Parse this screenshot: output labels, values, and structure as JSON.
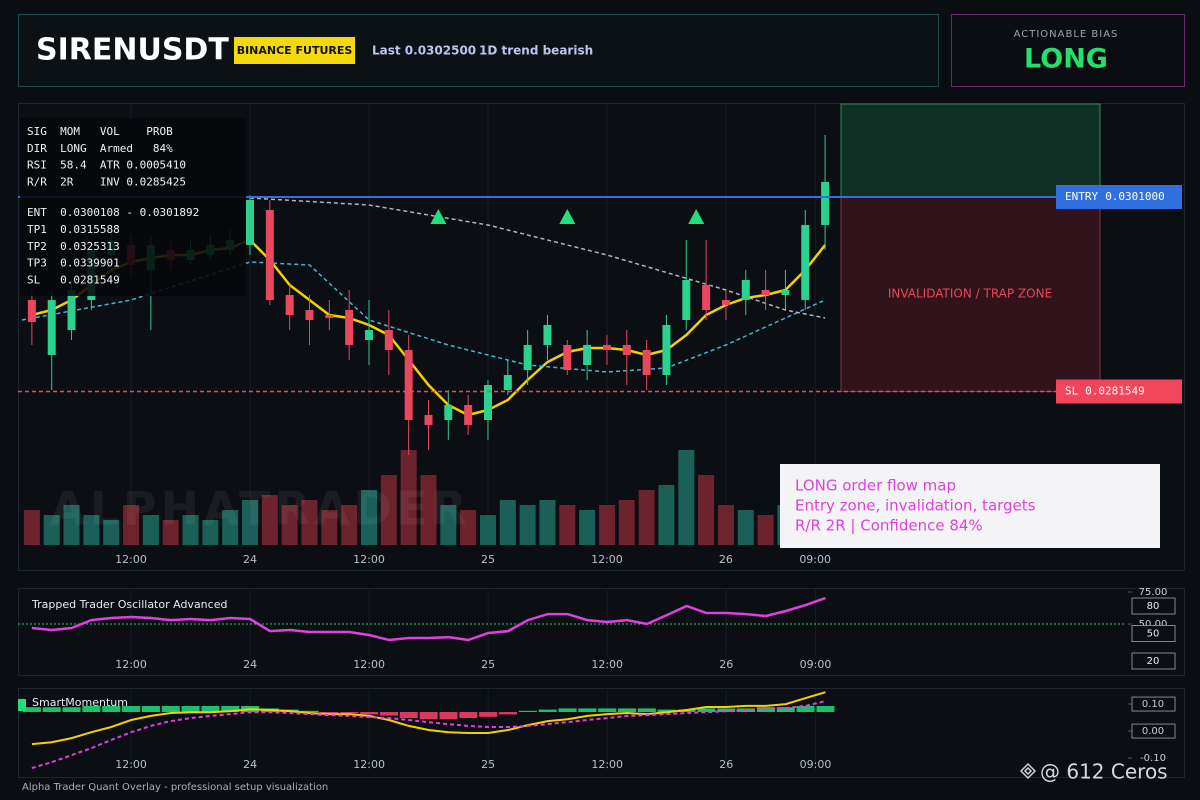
{
  "header": {
    "symbol": "SIRENUSDT",
    "badge": "BINANCE FUTURES",
    "last": "Last 0.0302500",
    "trend": "1D trend bearish"
  },
  "bias": {
    "label": "ACTIONABLE BIAS",
    "value": "LONG"
  },
  "annotation": [
    "LONG order flow map",
    "Entry zone, invalidation, targets",
    "R/R 2R | Confidence 84%"
  ],
  "footer": "Alpha Trader Quant Overlay - professional setup visualization",
  "credit": "@ 612 Ceros",
  "chart_data": [
    {
      "type": "candlestick",
      "x": [
        2,
        4,
        6,
        8,
        10,
        12,
        14,
        16,
        18,
        20,
        22,
        24,
        26,
        28,
        30,
        32,
        34,
        36,
        38,
        40,
        42,
        44,
        46,
        48,
        50,
        52,
        54,
        56,
        58,
        60,
        62,
        64,
        66,
        68,
        70,
        72,
        74,
        76,
        78,
        80,
        82
      ],
      "open": [
        0.02907,
        0.02852,
        0.02877,
        0.02907,
        0.02952,
        0.02962,
        0.02937,
        0.02957,
        0.02947,
        0.02952,
        0.02957,
        0.02962,
        0.02997,
        0.02912,
        0.02897,
        0.02892,
        0.02897,
        0.02867,
        0.02877,
        0.02857,
        0.02792,
        0.02787,
        0.02802,
        0.02787,
        0.02817,
        0.02837,
        0.02862,
        0.02862,
        0.02842,
        0.02862,
        0.02862,
        0.02857,
        0.02832,
        0.02887,
        0.02922,
        0.02907,
        0.02907,
        0.02917,
        0.02912,
        0.02907,
        0.02982
      ],
      "high": [
        0.02917,
        0.02917,
        0.02927,
        0.02967,
        0.02977,
        0.02972,
        0.02972,
        0.02967,
        0.02967,
        0.02972,
        0.02977,
        0.03012,
        0.03007,
        0.02922,
        0.02912,
        0.02907,
        0.02917,
        0.02907,
        0.02897,
        0.02872,
        0.02807,
        0.02817,
        0.02812,
        0.02827,
        0.02847,
        0.02877,
        0.02892,
        0.02867,
        0.02877,
        0.02872,
        0.02877,
        0.02867,
        0.02892,
        0.02967,
        0.02967,
        0.02917,
        0.02937,
        0.02937,
        0.02937,
        0.02997,
        0.03072
      ],
      "low": [
        0.02862,
        0.02817,
        0.02867,
        0.02897,
        0.02942,
        0.02932,
        0.02877,
        0.02937,
        0.02942,
        0.02947,
        0.02952,
        0.02952,
        0.02902,
        0.02877,
        0.02862,
        0.02877,
        0.02847,
        0.02842,
        0.02832,
        0.02752,
        0.02757,
        0.02767,
        0.02772,
        0.02767,
        0.02812,
        0.02822,
        0.02847,
        0.02832,
        0.02827,
        0.02842,
        0.02822,
        0.02817,
        0.02822,
        0.02877,
        0.02887,
        0.02887,
        0.02892,
        0.02897,
        0.02897,
        0.02897,
        0.02957
      ],
      "close": [
        0.02885,
        0.02907,
        0.02917,
        0.02957,
        0.02967,
        0.02942,
        0.02962,
        0.02947,
        0.02957,
        0.02962,
        0.02967,
        0.03007,
        0.02907,
        0.02892,
        0.02887,
        0.02889,
        0.02862,
        0.02877,
        0.02857,
        0.02787,
        0.02782,
        0.02802,
        0.02782,
        0.02822,
        0.02832,
        0.02862,
        0.02882,
        0.02837,
        0.02862,
        0.02857,
        0.02852,
        0.02832,
        0.02882,
        0.02927,
        0.02897,
        0.02902,
        0.02927,
        0.02912,
        0.02917,
        0.02982,
        0.03025
      ],
      "up_color": "#2bd18f",
      "down_color": "#e8475c",
      "xlim": [
        0.6,
        118.3
      ],
      "ylim": [
        0.02662,
        0.03103
      ],
      "xticks": [
        {
          "value": 12,
          "label": "12:00"
        },
        24,
        {
          "value": 36,
          "label": "12:00"
        },
        {
          "value": 48,
          "label": "25"
        },
        {
          "value": 60,
          "label": "12:00"
        },
        {
          "value": 72,
          "label": "26"
        },
        {
          "value": 81,
          "label": "09:00"
        }
      ],
      "overlays": [
        {
          "color": "#f5d000",
          "dash": false,
          "x": [
            2,
            4,
            6,
            8,
            10,
            12,
            14,
            16,
            18,
            20,
            22,
            24,
            26,
            28,
            30,
            32,
            34,
            36,
            38,
            40,
            42,
            44,
            46,
            48,
            50,
            52,
            54,
            56,
            58,
            60,
            62,
            64,
            66,
            68,
            70,
            72,
            74,
            76,
            78,
            80,
            82
          ],
          "values": [
            0.02892,
            0.02897,
            0.02907,
            0.02922,
            0.02937,
            0.02945,
            0.02949,
            0.02952,
            0.02952,
            0.02957,
            0.02959,
            0.02967,
            0.02947,
            0.02922,
            0.02907,
            0.02892,
            0.02889,
            0.02882,
            0.02872,
            0.02847,
            0.02822,
            0.02802,
            0.02792,
            0.02797,
            0.02807,
            0.02827,
            0.02845,
            0.02855,
            0.02859,
            0.02859,
            0.02857,
            0.02852,
            0.02857,
            0.02872,
            0.02892,
            0.02902,
            0.02909,
            0.02912,
            0.02917,
            0.02937,
            0.02962
          ]
        },
        {
          "color": "#3fb8d8",
          "dash": true,
          "x": [
            1,
            12,
            24,
            30,
            36,
            44,
            52,
            60,
            66,
            72,
            78,
            82
          ],
          "values": [
            0.02887,
            0.02907,
            0.02945,
            0.02942,
            0.02887,
            0.02862,
            0.02842,
            0.02835,
            0.02839,
            0.02862,
            0.02889,
            0.02907
          ]
        },
        {
          "color": "#aeb6c2",
          "dash": true,
          "x": [
            24,
            36,
            48,
            60,
            72,
            78,
            82
          ],
          "values": [
            0.03009,
            0.03002,
            0.02982,
            0.02952,
            0.02917,
            0.02897,
            0.02889
          ]
        }
      ],
      "signals": {
        "color": "#1fe07a",
        "x": [
          43,
          56,
          69
        ],
        "values": [
          0.0299,
          0.0299,
          0.0299
        ]
      },
      "volume": {
        "values": [
          35,
          30,
          40,
          30,
          25,
          40,
          30,
          25,
          30,
          25,
          35,
          45,
          50,
          40,
          45,
          35,
          40,
          55,
          70,
          95,
          70,
          40,
          35,
          30,
          45,
          40,
          45,
          40,
          35,
          40,
          45,
          55,
          60,
          95,
          70,
          40,
          35,
          30,
          40,
          45,
          30
        ],
        "ylim": [
          0,
          120
        ]
      },
      "levels": [
        {
          "name": "ENTRY",
          "value": 0.0301,
          "value_label": "0.0301000",
          "color": "#2f6fe0"
        },
        {
          "name": "SL",
          "value": 0.0281549,
          "value_label": "0.0281549",
          "color": "#f0455a"
        }
      ],
      "zone_label": "INVALIDATION / TRAP ZONE",
      "watermark": "ALPHATRADER",
      "info_panel": [
        [
          "SIG  MOM   VOL    PROB",
          "DIR  LONG  Armed   84%",
          "RSI  58.4  ATR 0.0005410",
          "R/R  2R    INV 0.0285425"
        ],
        [
          "ENT  0.0300108 - 0.0301892",
          "TP1  0.0315588",
          "TP2  0.0325313",
          "TP3  0.0339901",
          "SL   0.0281549"
        ]
      ]
    },
    {
      "type": "line",
      "title": "Trapped Trader Oscillator Advanced",
      "x": [
        2,
        4,
        6,
        8,
        10,
        12,
        14,
        16,
        18,
        20,
        22,
        24,
        26,
        28,
        30,
        32,
        34,
        36,
        38,
        40,
        42,
        44,
        46,
        48,
        50,
        52,
        54,
        56,
        58,
        60,
        62,
        64,
        66,
        68,
        70,
        72,
        74,
        76,
        78,
        80,
        82
      ],
      "values": [
        46.9,
        45.3,
        46.9,
        53.1,
        54.7,
        55.5,
        54.7,
        53.1,
        53.9,
        53.1,
        54.7,
        53.9,
        44.5,
        45.3,
        43.8,
        43.8,
        43.8,
        41.4,
        37.5,
        39.1,
        39.1,
        39.8,
        37.5,
        43.0,
        44.5,
        53.1,
        57.8,
        57.8,
        53.1,
        51.6,
        53.1,
        50,
        57.0,
        64.1,
        58.6,
        58.6,
        57.8,
        56.3,
        60.2,
        64.8,
        70.3
      ],
      "color": "#e040e0",
      "hline": 50,
      "hline_color": "#2fbf6a",
      "xlim": [
        0.6,
        112.2
      ],
      "ylim": [
        25.8,
        76.6
      ],
      "yticks": [
        {
          "value": 75,
          "label": "75.00"
        },
        {
          "value": 50,
          "label": "50.00"
        }
      ],
      "xticks": [
        {
          "value": 12,
          "label": "12:00"
        },
        24,
        {
          "value": 36,
          "label": "12:00"
        },
        {
          "value": 48,
          "label": "25"
        },
        {
          "value": 60,
          "label": "12:00"
        },
        {
          "value": 72,
          "label": "26"
        },
        {
          "value": 81,
          "label": "09:00"
        }
      ],
      "levels": [
        80,
        50,
        20
      ]
    },
    {
      "type": "line",
      "title": "SmartMomentum",
      "x": [
        2,
        4,
        6,
        8,
        10,
        12,
        14,
        16,
        18,
        20,
        22,
        24,
        26,
        28,
        30,
        32,
        34,
        36,
        38,
        40,
        42,
        44,
        46,
        48,
        50,
        52,
        54,
        56,
        58,
        60,
        62,
        64,
        66,
        68,
        70,
        72,
        74,
        76,
        78,
        80,
        82
      ],
      "series": [
        {
          "color": "#f5d000",
          "dash": false,
          "values": [
            -0.048,
            -0.041,
            -0.026,
            -0.004,
            0.015,
            0.041,
            0.056,
            0.067,
            0.07,
            0.07,
            0.074,
            0.081,
            0.078,
            0.074,
            0.067,
            0.063,
            0.063,
            0.056,
            0.041,
            0.019,
            0.004,
            -0.004,
            -0.007,
            -0.007,
            0.004,
            0.022,
            0.037,
            0.044,
            0.056,
            0.063,
            0.067,
            0.063,
            0.07,
            0.078,
            0.089,
            0.089,
            0.093,
            0.093,
            0.1,
            0.122,
            0.144
          ]
        },
        {
          "color": "#e040e0",
          "dash": true,
          "values": [
            -0.137,
            -0.115,
            -0.089,
            -0.063,
            -0.033,
            -0.004,
            0.019,
            0.037,
            0.048,
            0.056,
            0.063,
            0.07,
            0.07,
            0.067,
            0.063,
            0.059,
            0.056,
            0.052,
            0.048,
            0.041,
            0.033,
            0.026,
            0.019,
            0.015,
            0.015,
            0.019,
            0.026,
            0.033,
            0.041,
            0.048,
            0.056,
            0.059,
            0.063,
            0.067,
            0.07,
            0.074,
            0.078,
            0.081,
            0.085,
            0.093,
            0.111
          ]
        }
      ],
      "histogram": {
        "values": [
          4,
          4,
          4,
          5,
          5,
          5,
          5,
          5,
          5,
          5,
          5,
          5,
          3,
          2,
          1,
          -1,
          -1,
          -2,
          -3,
          -5,
          -6,
          -6,
          -5,
          -4,
          -2,
          1,
          2,
          3,
          3,
          3,
          3,
          3,
          2,
          2,
          3,
          3,
          3,
          4,
          4,
          5,
          5
        ],
        "ylim": [
          -10,
          10
        ],
        "up_color": "#1fe07a",
        "down_color": "#ff3f6c"
      },
      "xlim": [
        0.6,
        112.2
      ],
      "ylim": [
        -0.144,
        0.152
      ],
      "yticks": [
        {
          "value": 0.1,
          "label": "0.10"
        },
        {
          "value": 0,
          "label": "0.00"
        },
        {
          "value": -0.1,
          "label": "-0.10"
        }
      ],
      "xticks": [
        {
          "value": 12,
          "label": "12:00"
        },
        24,
        {
          "value": 36,
          "label": "12:00"
        },
        {
          "value": 48,
          "label": "25"
        },
        {
          "value": 60,
          "label": "12:00"
        },
        {
          "value": 72,
          "label": "26"
        },
        {
          "value": 81,
          "label": "09:00"
        }
      ]
    }
  ]
}
